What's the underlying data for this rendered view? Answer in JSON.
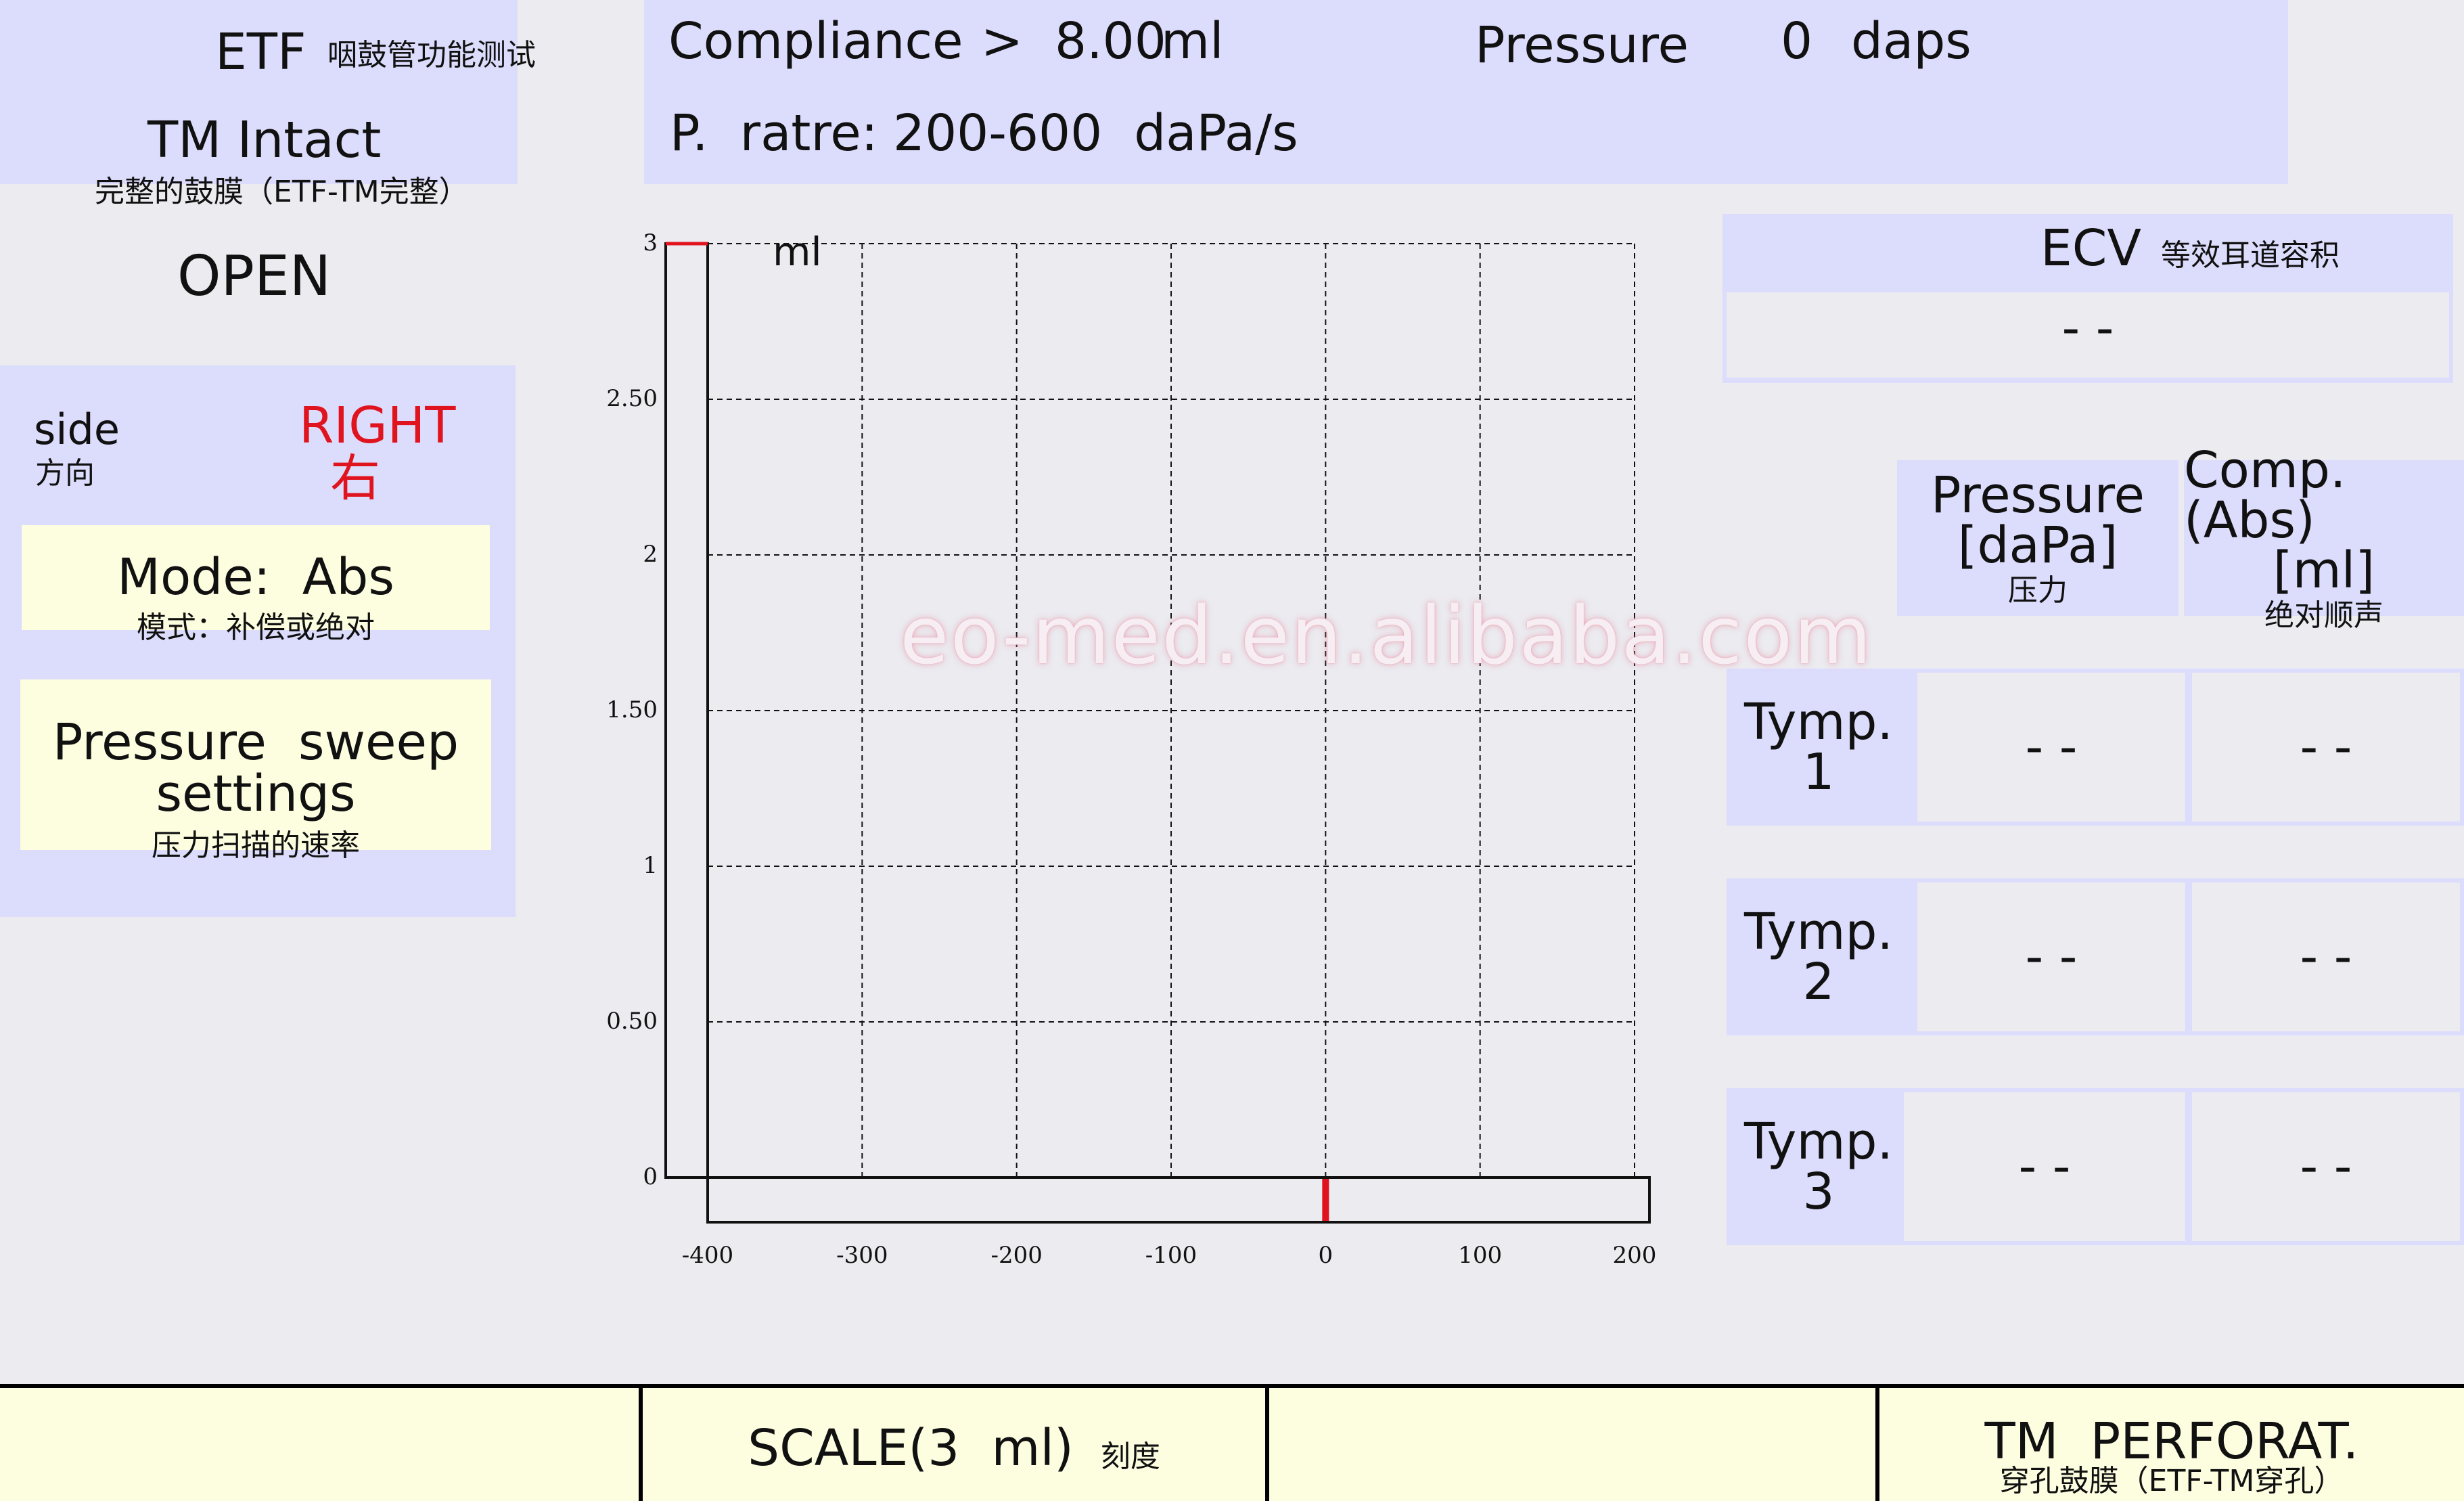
{
  "etf": {
    "title": "ETF",
    "title_cn": "咽鼓管功能测试",
    "status": "TM  Intact",
    "status_cn": "完整的鼓膜（ETF-TM完整）",
    "state": "OPEN"
  },
  "header": {
    "compliance_label": "Compliance",
    "compliance_value": ">  8.00",
    "compliance_unit": "ml",
    "pressure_label": "Pressure",
    "pressure_value": "0",
    "pressure_unit": "daps",
    "rate_label": "P.  ratre:",
    "rate_value": "200-600  daPa/s"
  },
  "side": {
    "label": "side",
    "label_cn": "方向",
    "value": "RIGHT",
    "value_cn": "右"
  },
  "mode": {
    "label": "Mode:  Abs",
    "label_cn": "模式：补偿或绝对"
  },
  "sweep": {
    "label_line1": "Pressure  sweep",
    "label_line2": "settings",
    "label_cn": "压力扫描的速率"
  },
  "watermark": "eo-med.en.alibaba.com",
  "chart_data": {
    "type": "line",
    "ylabel": "ml",
    "xlim": [
      -400,
      200
    ],
    "ylim": [
      0,
      3
    ],
    "x_ticks": [
      "-400",
      "-300",
      "-200",
      "-100",
      "0",
      "100",
      "200"
    ],
    "y_ticks": [
      "0",
      "0.50",
      "1",
      "1.50",
      "2",
      "2.50",
      "3"
    ],
    "grid": true,
    "series": [],
    "pressure_marker_x": 0,
    "compliance_marker_y": 3
  },
  "ecv": {
    "title": "ECV",
    "title_cn": "等效耳道容积",
    "value": "- -"
  },
  "table": {
    "col1": {
      "line1": "Pressure",
      "line2": "[daPa]",
      "cn": "压力"
    },
    "col2": {
      "line1": "Comp.(Abs)",
      "line2": "[ml]",
      "cn": "绝对顺声"
    },
    "rows": [
      {
        "label1": "Tymp.",
        "label2": "1",
        "pressure": "- -",
        "comp": "- -"
      },
      {
        "label1": "Tymp.",
        "label2": "2",
        "pressure": "- -",
        "comp": "- -"
      },
      {
        "label1": "Tymp.",
        "label2": "3",
        "pressure": "- -",
        "comp": "- -"
      }
    ]
  },
  "bottom": {
    "scale_label": "SCALE(3  ml)",
    "scale_cn": "刻度",
    "tm_label": "TM  PERFORAT.",
    "tm_cn": "穿孔鼓膜（ETF-TM穿孔）"
  },
  "colors": {
    "panel": "#dcdcfc",
    "yellow": "#fdfde0",
    "accent_red": "#e0141e",
    "background": "#ebebf0"
  }
}
